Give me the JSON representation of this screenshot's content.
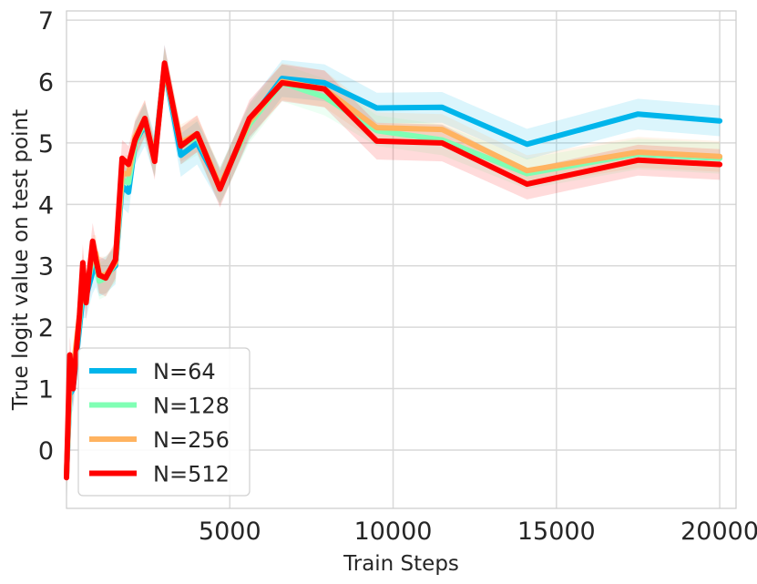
{
  "chart_data": {
    "type": "line",
    "xlabel": "Train Steps",
    "ylabel": "True logit value on test point",
    "xlim": [
      0,
      20500
    ],
    "ylim": [
      -0.95,
      7.15
    ],
    "x_ticks": [
      5000,
      10000,
      15000,
      20000
    ],
    "x_tick_labels": [
      "5000",
      "10000",
      "15000",
      "20000"
    ],
    "y_ticks": [
      0,
      1,
      2,
      3,
      4,
      5,
      6,
      7
    ],
    "y_tick_labels": [
      "0",
      "1",
      "2",
      "3",
      "4",
      "5",
      "6",
      "7"
    ],
    "grid": true,
    "legend_position": "lower-left",
    "x": [
      0,
      100,
      200,
      400,
      500,
      600,
      800,
      900,
      1000,
      1200,
      1500,
      1700,
      1900,
      2100,
      2400,
      2700,
      3000,
      3500,
      4000,
      4700,
      5600,
      6600,
      7900,
      9500,
      11500,
      14100,
      17500,
      20000
    ],
    "series": [
      {
        "name": "N=64",
        "color": "#00b5eb",
        "values": [
          -0.4,
          0.9,
          1.0,
          2.0,
          2.5,
          2.5,
          2.9,
          3.0,
          2.8,
          2.85,
          3.0,
          4.3,
          4.2,
          5.0,
          5.3,
          4.8,
          6.25,
          4.8,
          5.0,
          4.3,
          5.35,
          6.05,
          5.98,
          5.57,
          5.58,
          4.98,
          5.47,
          5.36
        ],
        "band": [
          0.35,
          0.35,
          0.35,
          0.35,
          0.35,
          0.35,
          0.35,
          0.35,
          0.3,
          0.3,
          0.3,
          0.35,
          0.35,
          0.35,
          0.35,
          0.35,
          0.35,
          0.35,
          0.35,
          0.3,
          0.3,
          0.3,
          0.3,
          0.25,
          0.25,
          0.25,
          0.25,
          0.25
        ]
      },
      {
        "name": "N=128",
        "color": "#80ffb4",
        "values": [
          -0.4,
          1.0,
          1.1,
          2.1,
          2.7,
          2.6,
          3.1,
          3.1,
          2.75,
          2.8,
          3.05,
          4.4,
          4.35,
          5.0,
          5.35,
          4.75,
          6.25,
          4.95,
          5.1,
          4.3,
          5.3,
          5.98,
          5.75,
          5.2,
          5.05,
          4.5,
          4.82,
          4.75
        ],
        "band": [
          0.3,
          0.3,
          0.3,
          0.3,
          0.3,
          0.3,
          0.3,
          0.3,
          0.3,
          0.3,
          0.3,
          0.3,
          0.3,
          0.3,
          0.3,
          0.3,
          0.3,
          0.3,
          0.3,
          0.3,
          0.3,
          0.3,
          0.3,
          0.25,
          0.25,
          0.25,
          0.25,
          0.25
        ]
      },
      {
        "name": "N=256",
        "color": "#ffb360",
        "values": [
          -0.4,
          1.1,
          1.3,
          2.2,
          2.9,
          2.6,
          3.2,
          3.2,
          2.85,
          2.85,
          3.05,
          4.5,
          4.5,
          5.1,
          5.4,
          4.75,
          6.25,
          5.0,
          5.15,
          4.3,
          5.35,
          6.0,
          5.88,
          5.25,
          5.22,
          4.55,
          4.85,
          4.78
        ],
        "band": [
          0.3,
          0.3,
          0.3,
          0.3,
          0.3,
          0.3,
          0.3,
          0.3,
          0.3,
          0.3,
          0.3,
          0.3,
          0.3,
          0.3,
          0.3,
          0.3,
          0.3,
          0.3,
          0.3,
          0.3,
          0.3,
          0.3,
          0.3,
          0.25,
          0.25,
          0.25,
          0.25,
          0.25
        ]
      },
      {
        "name": "N=512",
        "color": "#ff0000",
        "values": [
          -0.45,
          1.55,
          1.0,
          2.2,
          3.05,
          2.4,
          3.4,
          3.1,
          2.85,
          2.8,
          3.1,
          4.75,
          4.65,
          5.05,
          5.4,
          4.7,
          6.3,
          4.95,
          5.15,
          4.25,
          5.4,
          5.98,
          5.88,
          5.03,
          5.0,
          4.33,
          4.72,
          4.65
        ],
        "band": [
          0.3,
          0.3,
          0.3,
          0.3,
          0.3,
          0.3,
          0.3,
          0.3,
          0.3,
          0.3,
          0.3,
          0.3,
          0.3,
          0.3,
          0.3,
          0.3,
          0.3,
          0.3,
          0.3,
          0.3,
          0.3,
          0.3,
          0.3,
          0.3,
          0.3,
          0.25,
          0.25,
          0.25
        ]
      }
    ]
  }
}
